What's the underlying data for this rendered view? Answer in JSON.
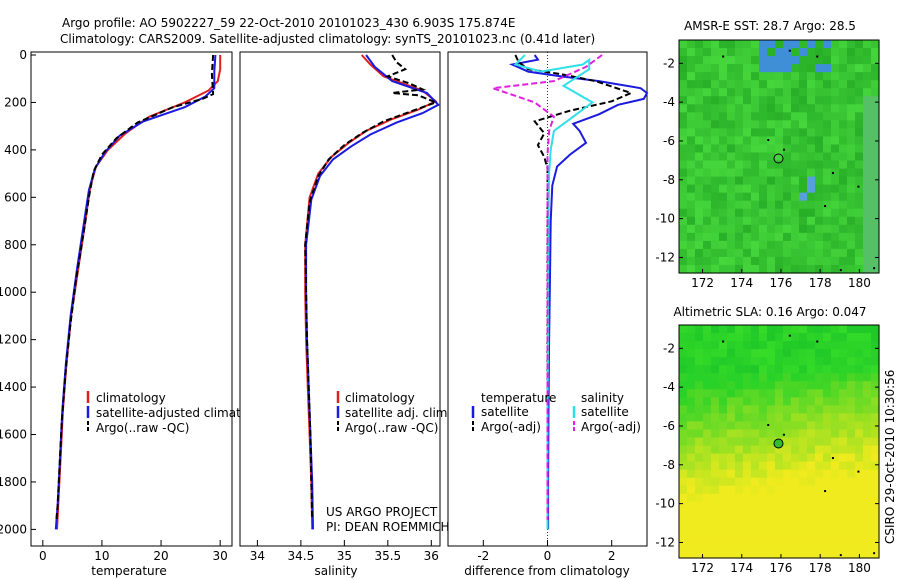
{
  "header": {
    "title_line1": "Argo profile: AO 5902227_59 22-Oct-2010 20101023_430 6.903S 175.874E",
    "title_line2": "Climatology: CARS2009. Satellite-adjusted climatology: synTS_20101023.nc (0.41d later)"
  },
  "credit": {
    "line1": "US ARGO PROJECT",
    "line2": "PI: DEAN ROEMMICH"
  },
  "footer": {
    "csiro_stamp": "CSIRO 29-Oct-2010 10:30:56"
  },
  "colors": {
    "climatology": "#e02020",
    "satellite": "#1a1ae0",
    "argo": "#000000",
    "satellite_salinity": "#30e0e8",
    "argo_salinity": "#e020e0"
  },
  "chart_data": [
    {
      "id": "temperature",
      "type": "line",
      "xlabel": "temperature",
      "ylabel": "",
      "xlim": [
        -2,
        32
      ],
      "ylim": [
        2070,
        0
      ],
      "xticks": [
        0,
        10,
        20,
        30
      ],
      "yticks": [
        0,
        200,
        400,
        600,
        800,
        1000,
        1200,
        1400,
        1600,
        1800,
        2000
      ],
      "legend": {
        "position": "lower-left",
        "entries": [
          "climatology",
          "satellite-adjusted climatology",
          "Argo(..raw -QC)"
        ]
      },
      "series": [
        {
          "name": "climatology",
          "color": "#e02020",
          "style": "solid",
          "points": [
            [
              30,
              0
            ],
            [
              30,
              60
            ],
            [
              29.6,
              110
            ],
            [
              28,
              150
            ],
            [
              24,
              200
            ],
            [
              18,
              260
            ],
            [
              14,
              330
            ],
            [
              11,
              400
            ],
            [
              9,
              470
            ],
            [
              8,
              560
            ],
            [
              7.2,
              700
            ],
            [
              6,
              900
            ],
            [
              4.8,
              1100
            ],
            [
              4,
              1300
            ],
            [
              3.4,
              1500
            ],
            [
              3,
              1700
            ],
            [
              2.6,
              1900
            ],
            [
              2.4,
              2000
            ]
          ]
        },
        {
          "name": "satellite-adjusted climatology",
          "color": "#1a1ae0",
          "style": "solid",
          "points": [
            [
              29.2,
              0
            ],
            [
              29,
              70
            ],
            [
              29,
              140
            ],
            [
              27.5,
              175
            ],
            [
              24,
              220
            ],
            [
              17,
              280
            ],
            [
              13,
              340
            ],
            [
              10.5,
              410
            ],
            [
              8.8,
              480
            ],
            [
              7.8,
              570
            ],
            [
              7,
              700
            ],
            [
              5.8,
              900
            ],
            [
              4.7,
              1100
            ],
            [
              3.9,
              1300
            ],
            [
              3.3,
              1500
            ],
            [
              2.9,
              1700
            ],
            [
              2.5,
              1900
            ],
            [
              2.2,
              2000
            ]
          ]
        },
        {
          "name": "Argo(..raw -QC)",
          "color": "#000000",
          "style": "dashed",
          "points": [
            [
              28.8,
              0
            ],
            [
              28.6,
              80
            ],
            [
              28.8,
              165
            ],
            [
              27,
              185
            ],
            [
              22,
              220
            ],
            [
              16,
              285
            ],
            [
              12.5,
              350
            ],
            [
              10,
              420
            ],
            [
              8.6,
              490
            ],
            [
              7.8,
              600
            ],
            [
              6.9,
              750
            ],
            [
              5.6,
              950
            ],
            [
              4.6,
              1150
            ],
            [
              3.8,
              1350
            ],
            [
              3.2,
              1550
            ],
            [
              2.8,
              1750
            ],
            [
              2.5,
              1900
            ],
            [
              2.3,
              1960
            ]
          ]
        }
      ]
    },
    {
      "id": "salinity",
      "type": "line",
      "xlabel": "salinity",
      "xlim": [
        33.8,
        36.1
      ],
      "ylim": [
        2070,
        0
      ],
      "xticks": [
        34,
        34.5,
        35,
        35.5,
        36
      ],
      "legend": {
        "position": "lower-left",
        "entries": [
          "climatology",
          "satellite adj. clim.",
          "Argo(..raw -QC)"
        ]
      },
      "series": [
        {
          "name": "climatology",
          "color": "#e02020",
          "style": "solid",
          "points": [
            [
              35.2,
              0
            ],
            [
              35.3,
              40
            ],
            [
              35.45,
              90
            ],
            [
              35.9,
              150
            ],
            [
              36.05,
              195
            ],
            [
              35.85,
              230
            ],
            [
              35.55,
              270
            ],
            [
              35.25,
              320
            ],
            [
              35.05,
              370
            ],
            [
              34.85,
              430
            ],
            [
              34.7,
              500
            ],
            [
              34.6,
              600
            ],
            [
              34.55,
              800
            ],
            [
              34.55,
              1000
            ],
            [
              34.56,
              1200
            ],
            [
              34.58,
              1400
            ],
            [
              34.6,
              1600
            ],
            [
              34.62,
              1800
            ],
            [
              34.63,
              2000
            ]
          ]
        },
        {
          "name": "satellite adj. clim.",
          "color": "#1a1ae0",
          "style": "solid",
          "points": [
            [
              35.25,
              0
            ],
            [
              35.35,
              50
            ],
            [
              35.55,
              110
            ],
            [
              35.95,
              160
            ],
            [
              36.08,
              210
            ],
            [
              35.9,
              245
            ],
            [
              35.6,
              285
            ],
            [
              35.3,
              335
            ],
            [
              35.08,
              385
            ],
            [
              34.87,
              440
            ],
            [
              34.72,
              510
            ],
            [
              34.62,
              610
            ],
            [
              34.56,
              800
            ],
            [
              34.56,
              1000
            ],
            [
              34.57,
              1200
            ],
            [
              34.59,
              1400
            ],
            [
              34.61,
              1600
            ],
            [
              34.63,
              1800
            ],
            [
              34.64,
              2000
            ]
          ]
        },
        {
          "name": "Argo(..raw -QC)",
          "color": "#000000",
          "style": "dashed",
          "points": [
            [
              35.55,
              0
            ],
            [
              35.6,
              30
            ],
            [
              35.7,
              60
            ],
            [
              35.5,
              90
            ],
            [
              35.75,
              120
            ],
            [
              35.9,
              145
            ],
            [
              35.55,
              160
            ],
            [
              35.85,
              170
            ],
            [
              36.05,
              200
            ],
            [
              35.75,
              240
            ],
            [
              35.45,
              280
            ],
            [
              35.2,
              330
            ],
            [
              35.0,
              380
            ],
            [
              34.82,
              440
            ],
            [
              34.7,
              510
            ],
            [
              34.6,
              620
            ],
            [
              34.55,
              800
            ],
            [
              34.56,
              1000
            ],
            [
              34.57,
              1200
            ],
            [
              34.59,
              1400
            ],
            [
              34.61,
              1600
            ],
            [
              34.62,
              1800
            ],
            [
              34.63,
              1960
            ]
          ]
        }
      ]
    },
    {
      "id": "difference",
      "type": "line",
      "xlabel": "difference from climatology",
      "xlim": [
        -3.1,
        3.1
      ],
      "ylim": [
        2070,
        0
      ],
      "xticks": [
        -2,
        0,
        2
      ],
      "legend": {
        "position": "lower-center",
        "headers": [
          "temperature",
          "salinity"
        ],
        "entries": [
          "satellite",
          "Argo(-adj)",
          "satellite",
          "Argo(-adj)"
        ]
      },
      "series": [
        {
          "name": "temperature satellite",
          "color": "#1a1ae0",
          "style": "solid",
          "points": [
            [
              -0.4,
              0
            ],
            [
              -0.3,
              20
            ],
            [
              -1.1,
              40
            ],
            [
              -0.6,
              70
            ],
            [
              0.4,
              90
            ],
            [
              1.6,
              110
            ],
            [
              2.9,
              140
            ],
            [
              3.1,
              160
            ],
            [
              3.0,
              185
            ],
            [
              2.2,
              210
            ],
            [
              1.6,
              250
            ],
            [
              0.8,
              290
            ],
            [
              1.0,
              320
            ],
            [
              1.2,
              370
            ],
            [
              0.7,
              420
            ],
            [
              0.3,
              470
            ],
            [
              0.15,
              550
            ],
            [
              0.1,
              700
            ],
            [
              0.08,
              900
            ],
            [
              0.05,
              1200
            ],
            [
              0.03,
              1500
            ],
            [
              0.02,
              1800
            ],
            [
              0.02,
              2000
            ]
          ]
        },
        {
          "name": "temperature Argo(-adj)",
          "color": "#000000",
          "style": "dashed",
          "points": [
            [
              -1.0,
              0
            ],
            [
              -0.9,
              30
            ],
            [
              -0.6,
              60
            ],
            [
              0.4,
              80
            ],
            [
              1.5,
              110
            ],
            [
              2.6,
              160
            ],
            [
              2.0,
              195
            ],
            [
              0.7,
              235
            ],
            [
              -0.4,
              280
            ],
            [
              -0.1,
              330
            ],
            [
              -0.3,
              380
            ],
            [
              -0.1,
              430
            ],
            [
              0.0,
              480
            ],
            [
              0.0,
              600
            ],
            [
              0.0,
              900
            ],
            [
              0.0,
              1200
            ],
            [
              0.0,
              1500
            ],
            [
              0.0,
              1800
            ],
            [
              0.0,
              1960
            ]
          ]
        },
        {
          "name": "salinity satellite",
          "color": "#30e0e8",
          "style": "solid",
          "points": [
            [
              -0.7,
              0
            ],
            [
              -1.0,
              40
            ],
            [
              -0.2,
              70
            ],
            [
              1.1,
              40
            ],
            [
              1.3,
              20
            ],
            [
              1.3,
              60
            ],
            [
              0.5,
              130
            ],
            [
              1.4,
              200
            ],
            [
              0.8,
              260
            ],
            [
              0.2,
              320
            ],
            [
              0.1,
              400
            ],
            [
              0.05,
              500
            ],
            [
              0.03,
              700
            ],
            [
              0.02,
              900
            ],
            [
              0.02,
              1200
            ],
            [
              0.0,
              1500
            ],
            [
              0.0,
              1800
            ],
            [
              0.0,
              2000
            ]
          ]
        },
        {
          "name": "salinity Argo(-adj)",
          "color": "#e020e0",
          "style": "dashed",
          "points": [
            [
              1.7,
              0
            ],
            [
              1.2,
              50
            ],
            [
              0.2,
              110
            ],
            [
              -1.7,
              140
            ],
            [
              -0.4,
              200
            ],
            [
              0.2,
              260
            ],
            [
              0.05,
              320
            ],
            [
              0.0,
              420
            ],
            [
              0.0,
              600
            ],
            [
              0.0,
              900
            ],
            [
              0.0,
              1200
            ],
            [
              0.0,
              1500
            ],
            [
              0.0,
              1800
            ],
            [
              0.0,
              1960
            ]
          ]
        }
      ]
    },
    {
      "id": "sst_map",
      "type": "heatmap",
      "title": "AMSR-E SST: 28.7 Argo: 28.5",
      "xlim": [
        170.8,
        181.0
      ],
      "ylim": [
        -12.8,
        -0.8
      ],
      "xticks": [
        172,
        174,
        176,
        178,
        180
      ],
      "yticks": [
        -2,
        -4,
        -6,
        -8,
        -10,
        -12
      ],
      "argo_marker": {
        "lon": 175.874,
        "lat": -6.903
      },
      "field_color": "#33cc33",
      "cloud_color": "#3f8fd6"
    },
    {
      "id": "sla_map",
      "type": "heatmap",
      "title": "Altimetric SLA: 0.16 Argo: 0.047",
      "xlim": [
        170.8,
        181.0
      ],
      "ylim": [
        -12.8,
        -0.8
      ],
      "xticks": [
        172,
        174,
        176,
        178,
        180
      ],
      "yticks": [
        -2,
        -4,
        -6,
        -8,
        -10,
        -12
      ],
      "argo_marker": {
        "lon": 175.874,
        "lat": -6.903
      },
      "field_color": "#22dd22",
      "high_color": "#ddee22"
    }
  ]
}
